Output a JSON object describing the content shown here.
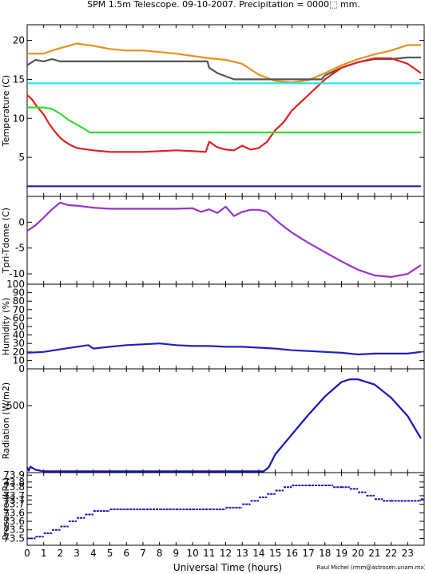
{
  "chart_data": {
    "title": "SPM 1.5m Telescope.  09-10-2007.  Precipitation = 0000⬚ mm.",
    "xlabel": "Universal Time (hours)",
    "credit": "Raul Michel (rmm@astrosen.unam.mx)",
    "xlim": [
      0,
      24
    ],
    "x_ticks": [
      "0",
      "1",
      "2",
      "3",
      "4",
      "5",
      "6",
      "7",
      "8",
      "9",
      "10",
      "11",
      "12",
      "13",
      "14",
      "15",
      "16",
      "17",
      "18",
      "19",
      "20",
      "21",
      "22",
      "23"
    ],
    "panels": [
      {
        "type": "line",
        "ylabel": "Temperature (C)",
        "ylim": [
          0,
          22
        ],
        "y_ticks": [
          "5",
          "10",
          "15",
          "20"
        ],
        "y_tick_values": [
          5,
          10,
          15,
          20
        ],
        "series": [
          {
            "color": "#e8901e",
            "x": [
              0,
              1,
              1.5,
              2,
              2.5,
              3,
              4,
              5,
              6,
              7,
              8,
              9,
              10,
              11,
              12,
              13,
              14,
              15,
              16,
              17,
              18,
              19,
              20,
              21,
              22,
              23,
              23.8
            ],
            "y": [
              18.3,
              18.3,
              18.7,
              19.0,
              19.3,
              19.6,
              19.3,
              18.9,
              18.7,
              18.7,
              18.5,
              18.3,
              18.0,
              17.7,
              17.5,
              17.0,
              15.6,
              14.8,
              14.6,
              14.9,
              15.8,
              16.8,
              17.6,
              18.2,
              18.7,
              19.4,
              19.4
            ]
          },
          {
            "color": "#555555",
            "x": [
              0,
              0.5,
              1,
              1.5,
              2,
              3,
              4,
              5,
              6,
              7,
              8,
              9,
              10,
              10.9,
              11,
              11.5,
              12,
              12.5,
              13,
              14,
              15,
              16,
              17,
              17.8,
              18,
              18.5,
              19,
              20,
              21,
              22,
              23,
              23.8
            ],
            "y": [
              16.8,
              17.5,
              17.3,
              17.6,
              17.3,
              17.3,
              17.3,
              17.3,
              17.3,
              17.3,
              17.3,
              17.3,
              17.3,
              17.3,
              16.5,
              15.8,
              15.4,
              15.0,
              15.0,
              15.0,
              15.0,
              15.0,
              15.0,
              15.0,
              15.5,
              16.0,
              16.5,
              17.2,
              17.6,
              17.6,
              17.8,
              17.8
            ]
          },
          {
            "color": "#e02020",
            "x": [
              0,
              0.3,
              0.6,
              1,
              1.3,
              1.6,
              2,
              2.3,
              2.6,
              3,
              4,
              5,
              6,
              7,
              8,
              9,
              10,
              10.8,
              11,
              11.5,
              12,
              12.5,
              13,
              13.5,
              14,
              14.5,
              15,
              15.5,
              16,
              17,
              18,
              19,
              20,
              21,
              22,
              23,
              23.8
            ],
            "y": [
              13.0,
              12.4,
              11.5,
              10.5,
              9.4,
              8.5,
              7.5,
              7.0,
              6.6,
              6.2,
              5.9,
              5.7,
              5.7,
              5.7,
              5.8,
              5.9,
              5.8,
              5.7,
              7.0,
              6.3,
              6.0,
              5.9,
              6.5,
              6.0,
              6.2,
              7.0,
              8.5,
              9.5,
              11.0,
              13.0,
              15.0,
              16.5,
              17.2,
              17.7,
              17.7,
              17.0,
              15.8
            ]
          },
          {
            "color": "#33dd33",
            "x": [
              0,
              1,
              1.5,
              2,
              2.5,
              3,
              3.5,
              3.8,
              5,
              10,
              15,
              20,
              23.8
            ],
            "y": [
              11.4,
              11.4,
              11.2,
              10.6,
              9.8,
              9.2,
              8.6,
              8.2,
              8.2,
              8.2,
              8.2,
              8.2,
              8.2
            ]
          },
          {
            "color": "#22e5e5",
            "x": [
              0,
              23.8
            ],
            "y": [
              14.5,
              14.5
            ]
          },
          {
            "color": "#2020b0",
            "x": [
              0,
              23.8
            ],
            "y": [
              1.3,
              1.3
            ]
          }
        ]
      },
      {
        "type": "line",
        "ylabel": "Tpri-Tdome (C)",
        "ylim": [
          -12,
          5
        ],
        "y_ticks": [
          "0",
          "-5",
          "-10"
        ],
        "y_tick_values": [
          0,
          -5,
          -10
        ],
        "series": [
          {
            "color": "#9933cc",
            "x": [
              0,
              0.5,
              1,
              1.5,
              2,
              2.5,
              3,
              4,
              5,
              6,
              7,
              8,
              9,
              10,
              10.5,
              11,
              11.5,
              12,
              12.5,
              13,
              13.5,
              14,
              14.5,
              15,
              15.5,
              16,
              17,
              18,
              19,
              20,
              21,
              22,
              23,
              23.8
            ],
            "y": [
              -1.7,
              -0.6,
              0.9,
              2.5,
              3.8,
              3.3,
              3.2,
              2.8,
              2.6,
              2.6,
              2.6,
              2.6,
              2.6,
              2.7,
              2.0,
              2.5,
              1.8,
              3.0,
              1.2,
              2.0,
              2.4,
              2.4,
              2.0,
              0.5,
              -0.8,
              -2.0,
              -4.0,
              -5.8,
              -7.6,
              -9.2,
              -10.3,
              -10.6,
              -10.0,
              -8.3
            ]
          }
        ]
      },
      {
        "type": "line",
        "ylabel": "Humidity (%)",
        "ylim": [
          0,
          100
        ],
        "y_ticks": [
          "0",
          "10",
          "20",
          "30",
          "40",
          "50",
          "60",
          "70",
          "80",
          "90",
          "100"
        ],
        "y_tick_values": [
          0,
          10,
          20,
          30,
          40,
          50,
          60,
          70,
          80,
          90,
          100
        ],
        "series": [
          {
            "color": "#2020c0",
            "x": [
              0,
              1,
              2,
              3,
              3.7,
              4,
              5,
              6,
              7,
              8,
              9,
              10,
              11,
              12,
              13,
              14,
              15,
              16,
              17,
              18,
              19,
              20,
              21,
              22,
              23,
              23.8
            ],
            "y": [
              19,
              20,
              23,
              26,
              28,
              24,
              26,
              28,
              29,
              30,
              28,
              27,
              27,
              26,
              26,
              25,
              24,
              22,
              21,
              20,
              19,
              17,
              18,
              18,
              18,
              20
            ]
          }
        ]
      },
      {
        "type": "line",
        "ylabel": "Radiation (W/m2)",
        "ylim": [
          -10,
          780
        ],
        "y_ticks": [
          "500"
        ],
        "y_tick_values": [
          500
        ],
        "series": [
          {
            "color": "#1515b0",
            "x": [
              0,
              0.1,
              0.2,
              0.5,
              1,
              14.3,
              14.6,
              15,
              16,
              17,
              18,
              19,
              19.5,
              20,
              21,
              22,
              23,
              23.8
            ],
            "y": [
              30,
              5,
              35,
              12,
              0,
              0,
              30,
              130,
              280,
              430,
              570,
              680,
              700,
              700,
              660,
              560,
              420,
              250
            ]
          }
        ]
      },
      {
        "type": "scatter",
        "ylabel": "Pressure (kPa)",
        "ylim": [
          73.46,
          73.885
        ],
        "y_ticks": [
          "73.5",
          "73.5",
          "73.6",
          "73.6",
          "73.7",
          "73.7",
          "73.7",
          "73.8",
          "73.8",
          "73.9"
        ],
        "y_tick_values": [
          73.5,
          73.55,
          73.6,
          73.65,
          73.7,
          73.725,
          73.75,
          73.8,
          73.83,
          73.87
        ],
        "series": [
          {
            "color": "#1010c0",
            "x": [
              0,
              0.5,
              1,
              1.5,
              2,
              2.5,
              3,
              3.5,
              4,
              5,
              6,
              7,
              8,
              9,
              10,
              11,
              12,
              13,
              13.5,
              14,
              14.5,
              15,
              15.5,
              16,
              17,
              18,
              18.5,
              19,
              19.5,
              20,
              20.5,
              21,
              21.5,
              22,
              23,
              23.8
            ],
            "y": [
              73.5,
              73.51,
              73.53,
              73.55,
              73.57,
              73.6,
              73.62,
              73.64,
              73.66,
              73.67,
              73.67,
              73.67,
              73.67,
              73.67,
              73.67,
              73.67,
              73.68,
              73.7,
              73.72,
              73.74,
              73.76,
              73.78,
              73.8,
              73.81,
              73.81,
              73.81,
              73.8,
              73.8,
              73.79,
              73.77,
              73.75,
              73.73,
              73.72,
              73.72,
              73.72,
              73.73
            ]
          }
        ]
      }
    ]
  }
}
